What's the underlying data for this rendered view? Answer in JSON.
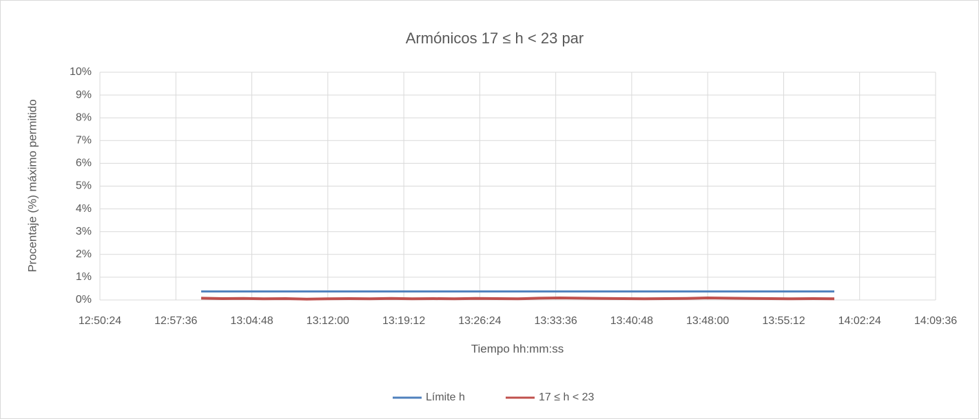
{
  "chart_data": {
    "type": "line",
    "title": "Armónicos 17 ≤ h < 23 par",
    "x_label": "Tiempo hh:mm:ss",
    "y_label": "Procentaje (%) máximo permitido",
    "x": [
      46800,
      46920,
      47040,
      47160,
      47280,
      47400,
      47520,
      47640,
      47760,
      47880,
      48000,
      48120,
      48240,
      48360,
      48480,
      48600,
      48720,
      48840,
      48960,
      49080,
      49200,
      49320,
      49440,
      49560,
      49680,
      49800,
      49920,
      50040,
      50160,
      50280,
      50400
    ],
    "series": [
      {
        "name": "Límite h",
        "color": "#4f81bd",
        "values": [
          0.375,
          0.375,
          0.375,
          0.375,
          0.375,
          0.375,
          0.375,
          0.375,
          0.375,
          0.375,
          0.375,
          0.375,
          0.375,
          0.375,
          0.375,
          0.375,
          0.375,
          0.375,
          0.375,
          0.375,
          0.375,
          0.375,
          0.375,
          0.375,
          0.375,
          0.375,
          0.375,
          0.375,
          0.375,
          0.375,
          0.375
        ]
      },
      {
        "name": "17 ≤ h < 23",
        "color": "#c0504d",
        "values": [
          0.08,
          0.06,
          0.07,
          0.05,
          0.06,
          0.04,
          0.05,
          0.06,
          0.05,
          0.07,
          0.05,
          0.06,
          0.05,
          0.07,
          0.06,
          0.05,
          0.08,
          0.09,
          0.08,
          0.07,
          0.06,
          0.05,
          0.06,
          0.07,
          0.09,
          0.08,
          0.07,
          0.06,
          0.05,
          0.06,
          0.05
        ]
      }
    ],
    "xlim": [
      46224,
      50976
    ],
    "xticks": [
      {
        "value": 46224,
        "label": "12:50:24"
      },
      {
        "value": 46656,
        "label": "12:57:36"
      },
      {
        "value": 47088,
        "label": "13:04:48"
      },
      {
        "value": 47520,
        "label": "13:12:00"
      },
      {
        "value": 47952,
        "label": "13:19:12"
      },
      {
        "value": 48384,
        "label": "13:26:24"
      },
      {
        "value": 48816,
        "label": "13:33:36"
      },
      {
        "value": 49248,
        "label": "13:40:48"
      },
      {
        "value": 49680,
        "label": "13:48:00"
      },
      {
        "value": 50112,
        "label": "13:55:12"
      },
      {
        "value": 50544,
        "label": "14:02:24"
      },
      {
        "value": 50976,
        "label": "14:09:36"
      }
    ],
    "ylim": [
      0,
      10
    ],
    "yticks": [
      {
        "value": 0,
        "label": "0%"
      },
      {
        "value": 1,
        "label": "1%"
      },
      {
        "value": 2,
        "label": "2%"
      },
      {
        "value": 3,
        "label": "3%"
      },
      {
        "value": 4,
        "label": "4%"
      },
      {
        "value": 5,
        "label": "5%"
      },
      {
        "value": 6,
        "label": "6%"
      },
      {
        "value": 7,
        "label": "7%"
      },
      {
        "value": 8,
        "label": "8%"
      },
      {
        "value": 9,
        "label": "9%"
      },
      {
        "value": 10,
        "label": "10%"
      }
    ],
    "grid": true,
    "legend": "bottom"
  }
}
